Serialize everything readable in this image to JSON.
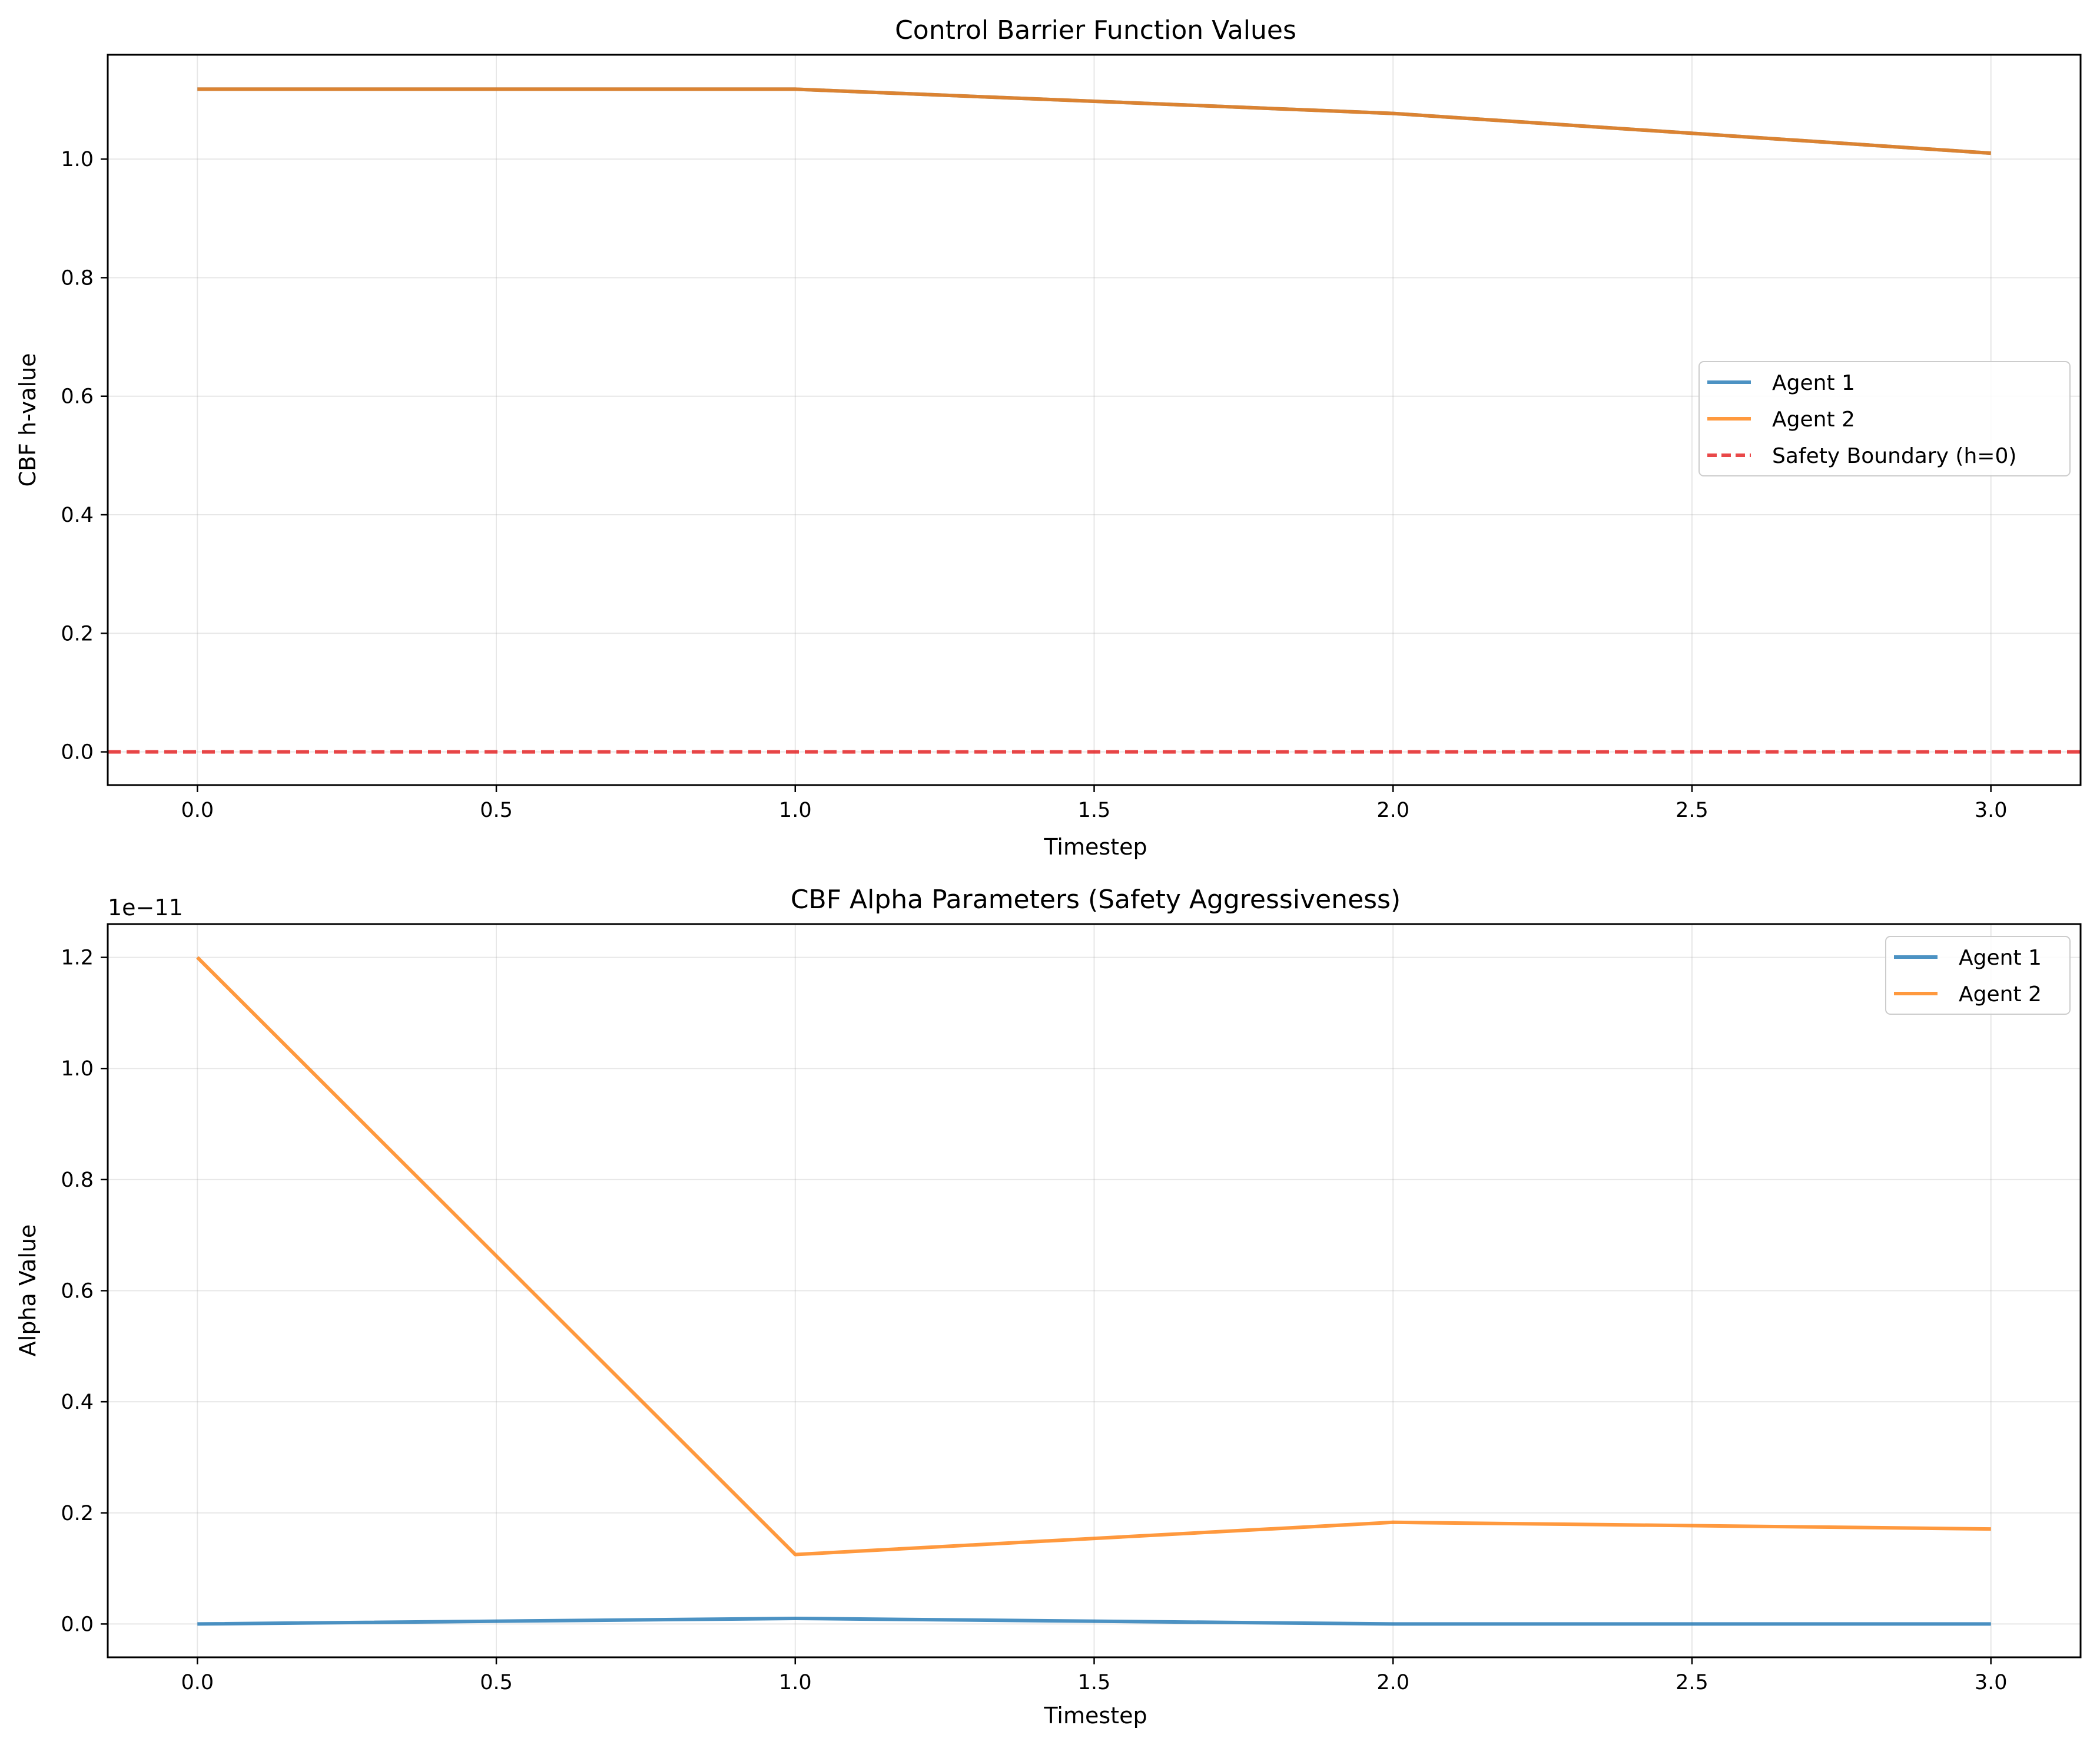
{
  "chart_data": [
    {
      "type": "line",
      "title": "Control Barrier Function Values",
      "xlabel": "Timestep",
      "ylabel": "CBF h-value",
      "xlim": [
        -0.15,
        3.15
      ],
      "ylim": [
        -0.056,
        1.176
      ],
      "xticks": [
        0.0,
        0.5,
        1.0,
        1.5,
        2.0,
        2.5,
        3.0
      ],
      "xtick_labels": [
        "0.0",
        "0.5",
        "1.0",
        "1.5",
        "2.0",
        "2.5",
        "3.0"
      ],
      "yticks": [
        0.0,
        0.2,
        0.4,
        0.6,
        0.8,
        1.0
      ],
      "ytick_labels": [
        "0.0",
        "0.2",
        "0.4",
        "0.6",
        "0.8",
        "1.0"
      ],
      "grid": true,
      "legend_position": "center-right",
      "series": [
        {
          "name": "Agent 1",
          "color": "#1f77b4",
          "x": [
            0,
            1,
            2,
            3
          ],
          "y": [
            1.118,
            1.118,
            1.077,
            1.01
          ]
        },
        {
          "name": "Agent 2",
          "color": "#ff7f0e",
          "x": [
            0,
            1,
            2,
            3
          ],
          "y": [
            1.118,
            1.118,
            1.077,
            1.01
          ]
        }
      ],
      "reference_lines": [
        {
          "name": "Safety Boundary (h=0)",
          "color": "#e41a1c",
          "y": 0,
          "style": "dashed"
        }
      ]
    },
    {
      "type": "line",
      "title": "CBF Alpha Parameters (Safety Aggressiveness)",
      "xlabel": "Timestep",
      "ylabel": "Alpha Value",
      "offset_label": "1e−11",
      "xlim": [
        -0.15,
        3.15
      ],
      "ylim": [
        -0.06,
        1.26
      ],
      "xticks": [
        0.0,
        0.5,
        1.0,
        1.5,
        2.0,
        2.5,
        3.0
      ],
      "xtick_labels": [
        "0.0",
        "0.5",
        "1.0",
        "1.5",
        "2.0",
        "2.5",
        "3.0"
      ],
      "yticks": [
        0.0,
        0.2,
        0.4,
        0.6,
        0.8,
        1.0,
        1.2
      ],
      "ytick_labels": [
        "0.0",
        "0.2",
        "0.4",
        "0.6",
        "0.8",
        "1.0",
        "1.2"
      ],
      "grid": true,
      "legend_position": "top-right",
      "series": [
        {
          "name": "Agent 1",
          "color": "#1f77b4",
          "x": [
            0,
            1,
            2,
            3
          ],
          "y": [
            0.0,
            0.01,
            0.0,
            0.0
          ]
        },
        {
          "name": "Agent 2",
          "color": "#ff7f0e",
          "x": [
            0,
            1,
            2,
            3
          ],
          "y": [
            1.2,
            0.125,
            0.183,
            0.171
          ]
        }
      ]
    }
  ]
}
